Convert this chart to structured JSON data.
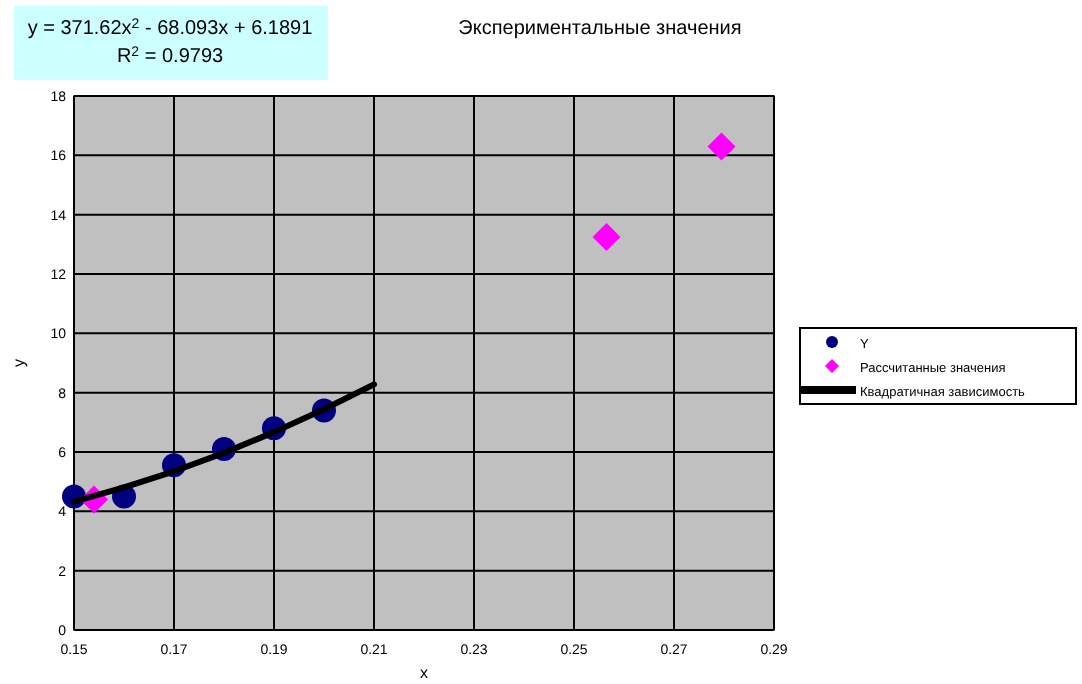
{
  "chart_data": {
    "type": "scatter",
    "title": "Экспериментальные значения",
    "xlabel": "x",
    "ylabel": "y",
    "annotations": [
      "y = 371.62x$^{2}$ - 68.093x + 6.1891",
      "R$^{2}$ = 0.9793"
    ],
    "xlim": [
      0.15,
      0.29
    ],
    "xticks": [
      0.15,
      0.17,
      0.19,
      0.21,
      0.23,
      0.25,
      0.27,
      0.29
    ],
    "ylim": [
      0,
      18
    ],
    "yticks": [
      0,
      2,
      4,
      6,
      8,
      10,
      12,
      14,
      16,
      18
    ],
    "grid": true,
    "legend": "right",
    "series": [
      {
        "name": "Y",
        "color": "#000080",
        "marker": "circle",
        "x": [
          0.15,
          0.16,
          0.17,
          0.18,
          0.19,
          0.2
        ],
        "values": [
          4.5,
          4.5,
          5.55,
          6.1,
          6.8,
          7.4
        ]
      },
      {
        "name": "Рассчитанные значения",
        "color": "#ff00ff",
        "marker": "diamond",
        "x": [
          0.154,
          0.2565,
          0.2795
        ],
        "values": [
          4.4,
          13.25,
          16.3
        ]
      },
      {
        "name": "Квадратичная зависимость",
        "color": "#000000",
        "type": "line",
        "marker": "none",
        "line_style": "solid",
        "x": [
          0.15,
          0.16,
          0.17,
          0.18,
          0.19,
          0.2,
          0.21
        ],
        "values": [
          4.33,
          4.81,
          5.35,
          5.97,
          6.67,
          7.44,
          8.28
        ]
      }
    ]
  }
}
